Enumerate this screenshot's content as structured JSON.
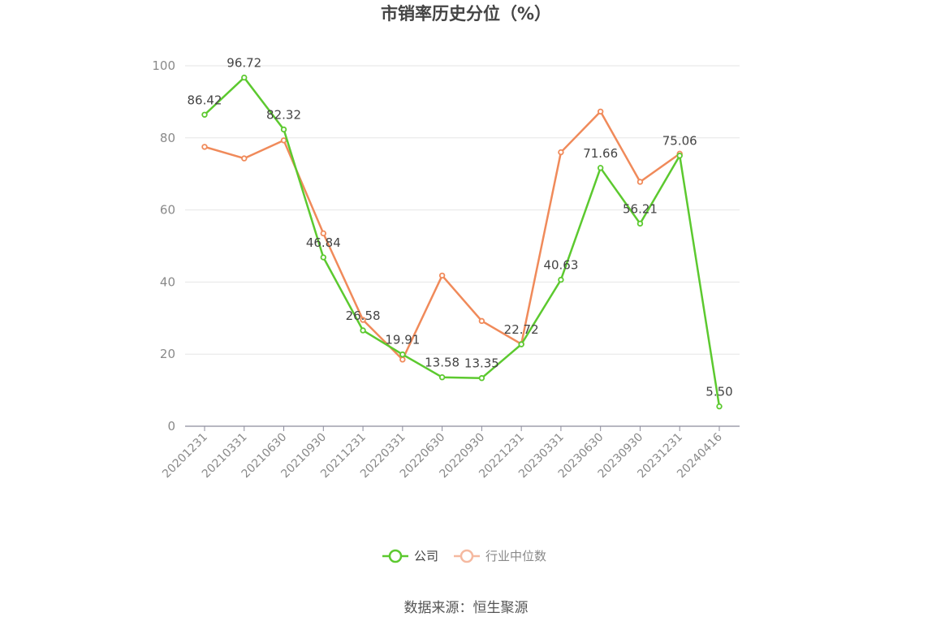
{
  "chart_data": {
    "type": "line",
    "title": "市销率历史分位（%）",
    "categories": [
      "20201231",
      "20210331",
      "20210630",
      "20210930",
      "20211231",
      "20220331",
      "20220630",
      "20220930",
      "20221231",
      "20230331",
      "20230630",
      "20230930",
      "20231231",
      "20240416"
    ],
    "ylim": [
      0,
      100
    ],
    "yticks": [
      0,
      20,
      40,
      60,
      80,
      100
    ],
    "grid": true,
    "legend_position": "bottom",
    "series": [
      {
        "name": "公司",
        "color": "#5cc92f",
        "values": [
          86.42,
          96.72,
          82.32,
          46.84,
          26.58,
          19.91,
          13.58,
          13.35,
          22.72,
          40.63,
          71.66,
          56.21,
          75.06,
          5.5
        ],
        "labels": [
          "86.42",
          "96.72",
          "82.32",
          "46.84",
          "26.58",
          "19.91",
          "13.58",
          "13.35",
          "22.72",
          "40.63",
          "71.66",
          "56.21",
          "75.06",
          "5.50"
        ]
      },
      {
        "name": "行业中位数",
        "color": "#f08a5a",
        "legend_color": "#f5b9a0",
        "values": [
          77.5,
          74.3,
          79.3,
          53.5,
          29.5,
          18.5,
          41.8,
          29.2,
          22.8,
          76.0,
          87.3,
          67.8,
          75.6,
          null
        ]
      }
    ],
    "source": "数据来源：恒生聚源"
  }
}
